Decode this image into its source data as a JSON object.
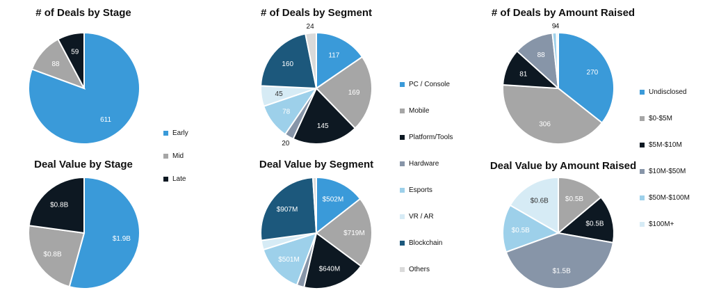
{
  "colors": {
    "blue": "#3a9ad9",
    "gray": "#a6a6a6",
    "black": "#0d1822",
    "slate": "#8795a8",
    "lightblue": "#9dd0ea",
    "paleblue": "#d6ebf5",
    "navy": "#1c587c",
    "lightgray": "#dadada"
  },
  "legends": {
    "stage": [
      {
        "label": "Early",
        "color": "#3a9ad9"
      },
      {
        "label": "Mid",
        "color": "#a6a6a6"
      },
      {
        "label": "Late",
        "color": "#0d1822"
      }
    ],
    "segment": [
      {
        "label": "PC / Console",
        "color": "#3a9ad9"
      },
      {
        "label": "Mobile",
        "color": "#a6a6a6"
      },
      {
        "label": "Platform/Tools",
        "color": "#0d1822"
      },
      {
        "label": "Hardware",
        "color": "#8795a8"
      },
      {
        "label": "Esports",
        "color": "#9dd0ea"
      },
      {
        "label": "VR / AR",
        "color": "#d6ebf5"
      },
      {
        "label": "Blockchain",
        "color": "#1c587c"
      },
      {
        "label": "Others",
        "color": "#dadada"
      }
    ],
    "amount": [
      {
        "label": "Undisclosed",
        "color": "#3a9ad9"
      },
      {
        "label": "$0-$5M",
        "color": "#a6a6a6"
      },
      {
        "label": "$5M-$10M",
        "color": "#0d1822"
      },
      {
        "label": "$10M-$50M",
        "color": "#8795a8"
      },
      {
        "label": "$50M-$100M",
        "color": "#9dd0ea"
      },
      {
        "label": "$100M+",
        "color": "#d6ebf5"
      }
    ]
  },
  "chart_data": [
    {
      "type": "pie",
      "title": "# of Deals by Stage",
      "slices": [
        {
          "label": "Early",
          "value": 611,
          "display": "611",
          "color": "#3a9ad9"
        },
        {
          "label": "Mid",
          "value": 88,
          "display": "88",
          "color": "#a6a6a6"
        },
        {
          "label": "Late",
          "value": 59,
          "display": "59",
          "color": "#0d1822"
        }
      ]
    },
    {
      "type": "pie",
      "title": "# of Deals by Segment",
      "slices": [
        {
          "label": "PC / Console",
          "value": 117,
          "display": "117",
          "color": "#3a9ad9"
        },
        {
          "label": "Mobile",
          "value": 169,
          "display": "169",
          "color": "#a6a6a6"
        },
        {
          "label": "Platform/Tools",
          "value": 145,
          "display": "145",
          "color": "#0d1822"
        },
        {
          "label": "Hardware",
          "value": 20,
          "display": "20",
          "color": "#8795a8"
        },
        {
          "label": "Esports",
          "value": 78,
          "display": "78",
          "color": "#9dd0ea"
        },
        {
          "label": "VR / AR",
          "value": 45,
          "display": "45",
          "color": "#d6ebf5"
        },
        {
          "label": "Blockchain",
          "value": 160,
          "display": "160",
          "color": "#1c587c"
        },
        {
          "label": "Others",
          "value": 24,
          "display": "24",
          "color": "#dadada"
        }
      ]
    },
    {
      "type": "pie",
      "title": "# of Deals by Amount Raised",
      "slices": [
        {
          "label": "Undisclosed",
          "value": 270,
          "display": "270",
          "color": "#3a9ad9"
        },
        {
          "label": "$0-$5M",
          "value": 306,
          "display": "306",
          "color": "#a6a6a6"
        },
        {
          "label": "$5M-$10M",
          "value": 81,
          "display": "81",
          "color": "#0d1822"
        },
        {
          "label": "$10M-$50M",
          "value": 88,
          "display": "88",
          "color": "#8795a8"
        },
        {
          "label": "$50M-$100M",
          "value": 9,
          "display": "9",
          "color": "#9dd0ea"
        },
        {
          "label": "$100M+",
          "value": 4,
          "display": "4",
          "color": "#d6ebf5"
        }
      ]
    },
    {
      "type": "pie",
      "title": "Deal Value by Stage",
      "slices": [
        {
          "label": "Early",
          "value": 1.9,
          "display": "$1.9B",
          "color": "#3a9ad9"
        },
        {
          "label": "Mid",
          "value": 0.8,
          "display": "$0.8B",
          "color": "#a6a6a6"
        },
        {
          "label": "Late",
          "value": 0.8,
          "display": "$0.8B",
          "color": "#0d1822"
        }
      ]
    },
    {
      "type": "pie",
      "title": "Deal Value by Segment",
      "slices": [
        {
          "label": "PC / Console",
          "value": 502,
          "display": "$502M",
          "color": "#3a9ad9"
        },
        {
          "label": "Mobile",
          "value": 719,
          "display": "$719M",
          "color": "#a6a6a6"
        },
        {
          "label": "Platform/Tools",
          "value": 640,
          "display": "$640M",
          "color": "#0d1822"
        },
        {
          "label": "Hardware",
          "value": 75,
          "display": "",
          "color": "#8795a8"
        },
        {
          "label": "Esports",
          "value": 501,
          "display": "$501M",
          "color": "#9dd0ea"
        },
        {
          "label": "VR / AR",
          "value": 95,
          "display": "",
          "color": "#d6ebf5"
        },
        {
          "label": "Blockchain",
          "value": 907,
          "display": "$907M",
          "color": "#1c587c"
        },
        {
          "label": "Others",
          "value": 35,
          "display": "",
          "color": "#dadada"
        }
      ]
    },
    {
      "type": "pie",
      "title": "Deal Value by Amount Raised",
      "slices": [
        {
          "label": "$0-$5M",
          "value": 0.5,
          "display": "$0.5B",
          "color": "#a6a6a6"
        },
        {
          "label": "$5M-$10M",
          "value": 0.5,
          "display": "$0.5B",
          "color": "#0d1822"
        },
        {
          "label": "$10M-$50M",
          "value": 1.5,
          "display": "$1.5B",
          "color": "#8795a8"
        },
        {
          "label": "$50M-$100M",
          "value": 0.5,
          "display": "$0.5B",
          "color": "#9dd0ea"
        },
        {
          "label": "$100M+",
          "value": 0.6,
          "display": "$0.6B",
          "color": "#d6ebf5"
        }
      ]
    }
  ]
}
